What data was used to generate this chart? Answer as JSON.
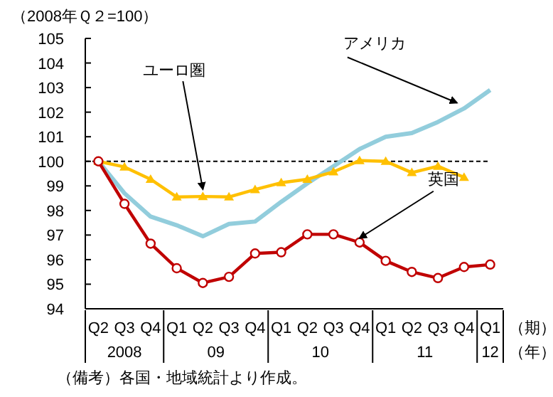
{
  "chart_data": {
    "type": "line",
    "ylabel": "（2008年Ｑ２=100）",
    "xlabel": "（期）",
    "categories": [
      "Q2",
      "Q3",
      "Q4",
      "Q1",
      "Q2",
      "Q3",
      "Q4",
      "Q1",
      "Q2",
      "Q3",
      "Q4",
      "Q1",
      "Q2",
      "Q3",
      "Q4",
      "Q1"
    ],
    "series": [
      {
        "name": "アメリカ",
        "color": "#92cddc",
        "marker": "none",
        "values": [
          100,
          98.7,
          97.75,
          97.4,
          96.95,
          97.45,
          97.55,
          98.35,
          99.1,
          99.8,
          100.5,
          101.0,
          101.15,
          101.6,
          102.15,
          102.9
        ]
      },
      {
        "name": "ユーロ圏",
        "color": "#ffc000",
        "marker": "triangle",
        "values": [
          100,
          99.77,
          99.27,
          98.55,
          98.57,
          98.55,
          98.85,
          99.13,
          99.27,
          99.57,
          100.03,
          100.0,
          99.54,
          99.8,
          99.35,
          null
        ]
      },
      {
        "name": "英国",
        "color": "#c00000",
        "marker": "circle",
        "values": [
          100,
          98.27,
          96.65,
          95.65,
          95.05,
          95.3,
          96.25,
          96.3,
          97.03,
          97.03,
          96.7,
          95.95,
          95.5,
          95.25,
          95.7,
          95.8
        ]
      }
    ],
    "ylim": [
      94,
      105
    ],
    "yticks": [
      94,
      95,
      96,
      97,
      98,
      99,
      100,
      101,
      102,
      103,
      104,
      105
    ],
    "ref_lines": [
      {
        "axis": "y",
        "value": 100,
        "color": "#000000",
        "line_style": "dashed"
      }
    ],
    "grid": false,
    "legend": false,
    "annotations": [
      "2008",
      "09",
      "10",
      "11",
      "12",
      "（備考）各国・地域統計より作成。",
      "（年）"
    ]
  }
}
